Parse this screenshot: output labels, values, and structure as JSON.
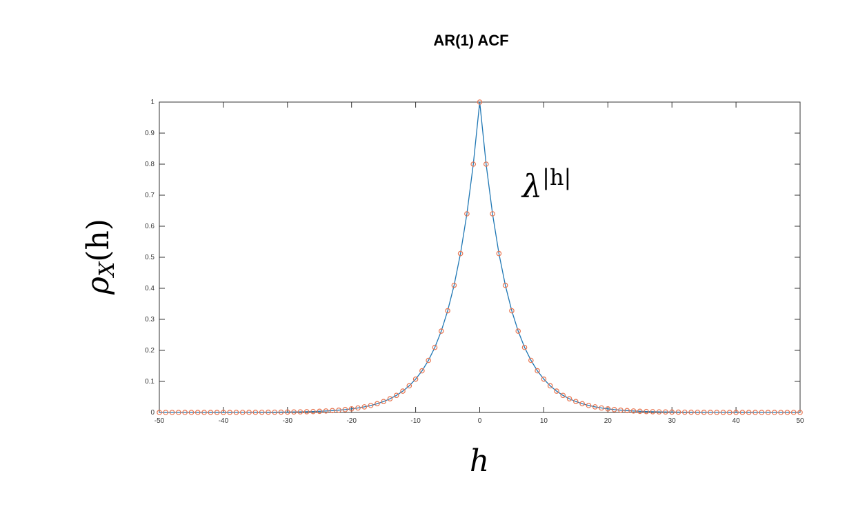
{
  "chart_data": {
    "type": "line",
    "title": "AR(1) ACF",
    "xlabel": "h",
    "ylabel": "ρX(h)",
    "ylabel_base": "ρ",
    "ylabel_sub": "X",
    "ylabel_arg": "(h)",
    "annotation": "λ|h|",
    "annotation_base": "λ",
    "annotation_sup": "|h|",
    "xlim": [
      -50,
      50
    ],
    "ylim": [
      0,
      1
    ],
    "x_ticks": [
      -50,
      -40,
      -30,
      -20,
      -10,
      0,
      10,
      20,
      30,
      40,
      50
    ],
    "y_ticks": [
      0,
      0.1,
      0.2,
      0.3,
      0.4,
      0.5,
      0.6,
      0.7,
      0.8,
      0.9,
      1
    ],
    "x_tick_labels": [
      "-50",
      "-40",
      "-30",
      "-20",
      "-10",
      "0",
      "10",
      "20",
      "30",
      "40",
      "50"
    ],
    "y_tick_labels": [
      "0",
      "0.1",
      "0.2",
      "0.3",
      "0.4",
      "0.5",
      "0.6",
      "0.7",
      "0.8",
      "0.9",
      "1"
    ],
    "grid": false,
    "legend": "none",
    "series": [
      {
        "lambda": 0.8,
        "h_min": -50,
        "h_max": 50,
        "line_color": "#1f77b4",
        "marker_color": "#e8744f",
        "marker": "circle"
      }
    ]
  }
}
